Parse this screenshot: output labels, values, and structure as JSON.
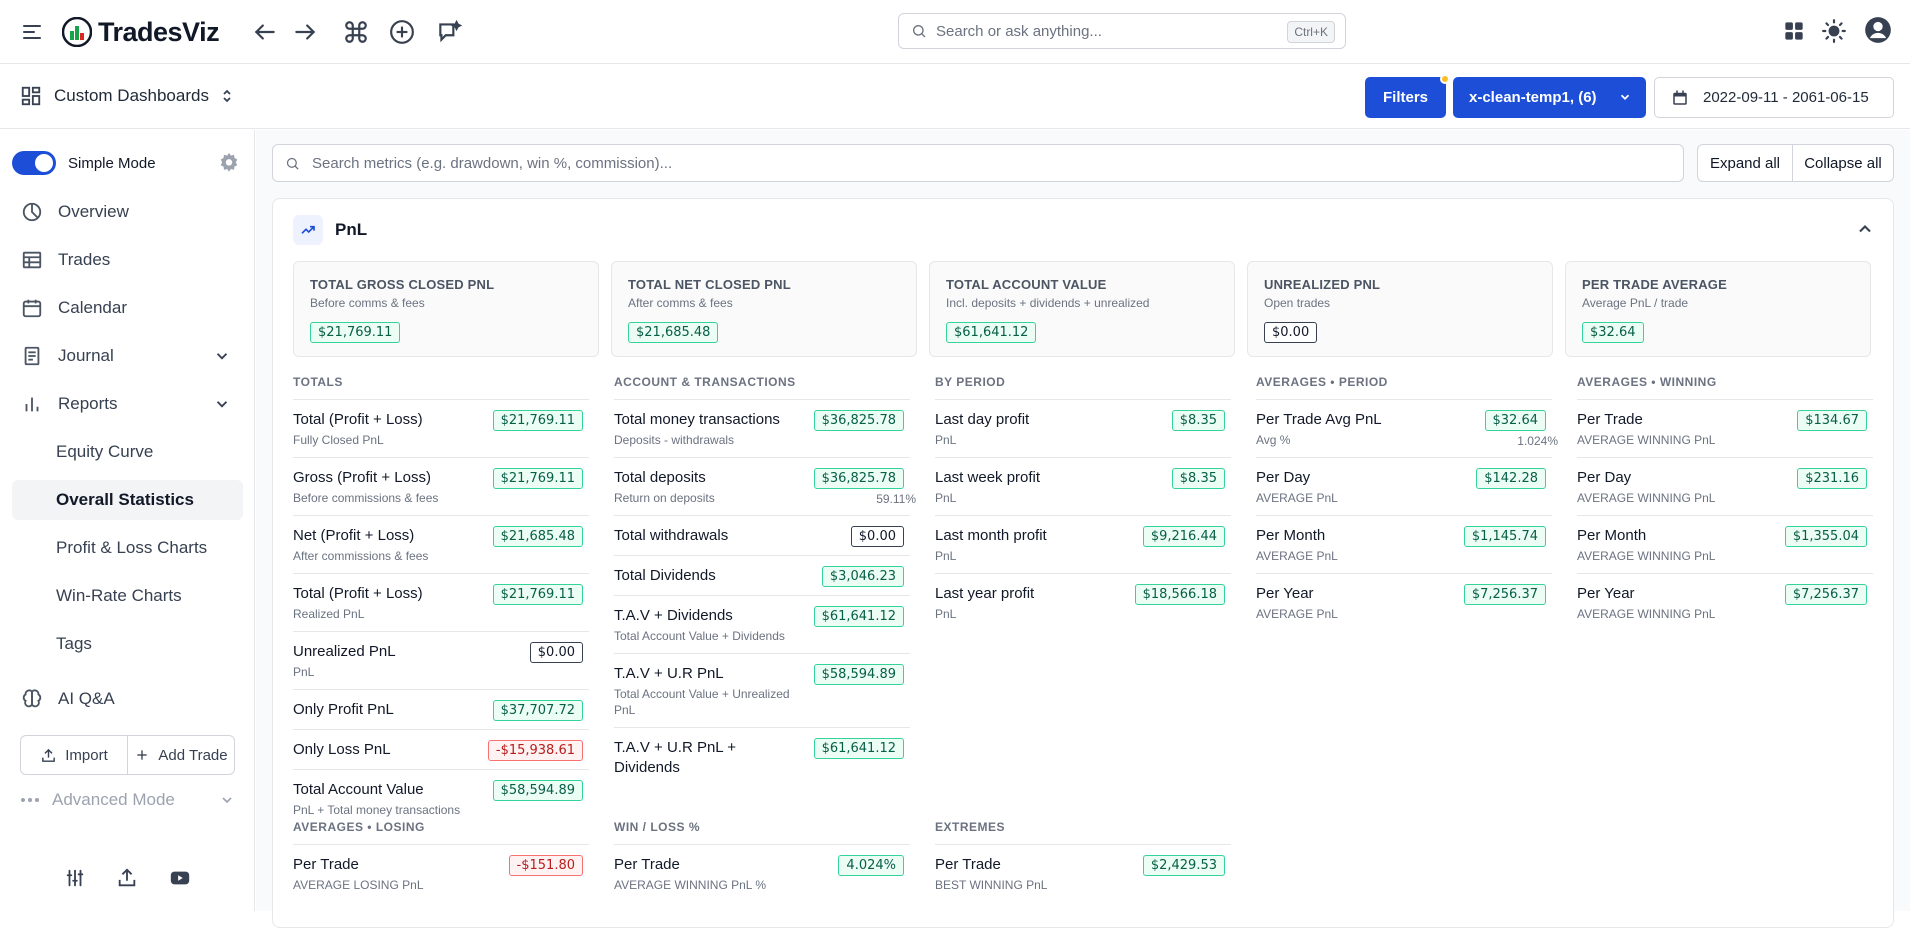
{
  "app": {
    "name": "TradesViz"
  },
  "topbar": {
    "search_placeholder": "Search or ask anything...",
    "search_kbd": "Ctrl+K"
  },
  "subbar": {
    "dashboard_label": "Custom Dashboards",
    "filters_label": "Filters",
    "account_label": "x-clean-temp1, (6)",
    "date_range": "2022-09-11 - 2061-06-15"
  },
  "sidebar": {
    "simple_mode": "Simple Mode",
    "items": [
      {
        "label": "Overview",
        "icon": "pie-chart-icon"
      },
      {
        "label": "Trades",
        "icon": "table-icon"
      },
      {
        "label": "Calendar",
        "icon": "calendar-icon"
      },
      {
        "label": "Journal",
        "icon": "journal-icon"
      },
      {
        "label": "Reports",
        "icon": "bar-chart-icon"
      }
    ],
    "reports_sub": [
      "Equity Curve",
      "Overall Statistics",
      "Profit & Loss Charts",
      "Win-Rate Charts",
      "Tags"
    ],
    "ai_label": "AI Q&A",
    "import_label": "Import",
    "add_trade_label": "Add Trade",
    "advanced_label": "Advanced Mode"
  },
  "main": {
    "metric_search_placeholder": "Search metrics (e.g. drawdown, win %, commission)...",
    "expand_all": "Expand all",
    "collapse_all": "Collapse all",
    "section_title": "PnL",
    "kpis": [
      {
        "title": "TOTAL GROSS CLOSED PNL",
        "sub": "Before comms & fees",
        "value": "$21,769.11",
        "kind": "green"
      },
      {
        "title": "TOTAL NET CLOSED PNL",
        "sub": "After comms & fees",
        "value": "$21,685.48",
        "kind": "green"
      },
      {
        "title": "TOTAL ACCOUNT VALUE",
        "sub": "Incl. deposits + dividends + unrealized",
        "value": "$61,641.12",
        "kind": "green"
      },
      {
        "title": "UNREALIZED PNL",
        "sub": "Open trades",
        "value": "$0.00",
        "kind": "neutral"
      },
      {
        "title": "PER TRADE AVERAGE",
        "sub": "Average PnL / trade",
        "value": "$32.64",
        "kind": "green"
      }
    ],
    "columns": [
      {
        "header": "TOTALS",
        "rows": [
          {
            "label": "Total (Profit + Loss)",
            "sub": "Fully Closed PnL",
            "value": "$21,769.11",
            "kind": "green"
          },
          {
            "label": "Gross (Profit + Loss)",
            "sub": "Before commissions & fees",
            "value": "$21,769.11",
            "kind": "green"
          },
          {
            "label": "Net (Profit + Loss)",
            "sub": "After commissions & fees",
            "value": "$21,685.48",
            "kind": "green"
          },
          {
            "label": "Total (Profit + Loss)",
            "sub": "Realized PnL",
            "value": "$21,769.11",
            "kind": "green"
          },
          {
            "label": "Unrealized PnL",
            "sub": "PnL",
            "value": "$0.00",
            "kind": "neutral"
          },
          {
            "label": "Only Profit PnL",
            "sub": "",
            "value": "$37,707.72",
            "kind": "green"
          },
          {
            "label": "Only Loss PnL",
            "sub": "",
            "value": "-$15,938.61",
            "kind": "red"
          },
          {
            "label": "Total Account Value",
            "sub": "PnL + Total money transactions",
            "value": "$58,594.89",
            "kind": "green"
          }
        ]
      },
      {
        "header": "ACCOUNT & TRANSACTIONS",
        "rows": [
          {
            "label": "Total money transactions",
            "sub": "Deposits - withdrawals",
            "value": "$36,825.78",
            "kind": "green"
          },
          {
            "label": "Total deposits",
            "sub": "Return on deposits",
            "value": "$36,825.78",
            "kind": "green",
            "note": "59.11%"
          },
          {
            "label": "Total withdrawals",
            "sub": "",
            "value": "$0.00",
            "kind": "neutral"
          },
          {
            "label": "Total Dividends",
            "sub": "",
            "value": "$3,046.23",
            "kind": "green"
          },
          {
            "label": "T.A.V + Dividends",
            "sub": "Total Account Value + Dividends",
            "value": "$61,641.12",
            "kind": "green"
          },
          {
            "label": "T.A.V + U.R PnL",
            "sub": "Total Account Value + Unrealized PnL",
            "value": "$58,594.89",
            "kind": "green"
          },
          {
            "label": "T.A.V + U.R PnL + Dividends",
            "sub": "",
            "value": "$61,641.12",
            "kind": "green"
          }
        ]
      },
      {
        "header": "BY PERIOD",
        "rows": [
          {
            "label": "Last day profit",
            "sub": "PnL",
            "value": "$8.35",
            "kind": "green"
          },
          {
            "label": "Last week profit",
            "sub": "PnL",
            "value": "$8.35",
            "kind": "green"
          },
          {
            "label": "Last month profit",
            "sub": "PnL",
            "value": "$9,216.44",
            "kind": "green"
          },
          {
            "label": "Last year profit",
            "sub": "PnL",
            "value": "$18,566.18",
            "kind": "green"
          }
        ]
      },
      {
        "header": "AVERAGES • PERIOD",
        "rows": [
          {
            "label": "Per Trade Avg PnL",
            "sub": "Avg %",
            "value": "$32.64",
            "kind": "green",
            "note": "1.024%"
          },
          {
            "label": "Per Day",
            "sub": "AVERAGE PnL",
            "value": "$142.28",
            "kind": "green"
          },
          {
            "label": "Per Month",
            "sub": "AVERAGE PnL",
            "value": "$1,145.74",
            "kind": "green"
          },
          {
            "label": "Per Year",
            "sub": "AVERAGE PnL",
            "value": "$7,256.37",
            "kind": "green"
          }
        ]
      },
      {
        "header": "AVERAGES • WINNING",
        "rows": [
          {
            "label": "Per Trade",
            "sub": "AVERAGE WINNING PnL",
            "value": "$134.67",
            "kind": "green"
          },
          {
            "label": "Per Day",
            "sub": "AVERAGE WINNING PnL",
            "value": "$231.16",
            "kind": "green"
          },
          {
            "label": "Per Month",
            "sub": "AVERAGE WINNING PnL",
            "value": "$1,355.04",
            "kind": "green"
          },
          {
            "label": "Per Year",
            "sub": "AVERAGE WINNING PnL",
            "value": "$7,256.37",
            "kind": "green"
          }
        ]
      },
      {
        "header": "AVERAGES • LOSING",
        "rows": [
          {
            "label": "Per Trade",
            "sub": "AVERAGE LOSING PnL",
            "value": "-$151.80",
            "kind": "red"
          }
        ]
      },
      {
        "header": "WIN / LOSS %",
        "rows": [
          {
            "label": "Per Trade",
            "sub": "AVERAGE WINNING PnL %",
            "value": "4.024%",
            "kind": "green"
          }
        ]
      },
      {
        "header": "EXTREMES",
        "rows": [
          {
            "label": "Per Trade",
            "sub": "BEST WINNING PnL",
            "value": "$2,429.53",
            "kind": "green"
          }
        ]
      }
    ]
  }
}
